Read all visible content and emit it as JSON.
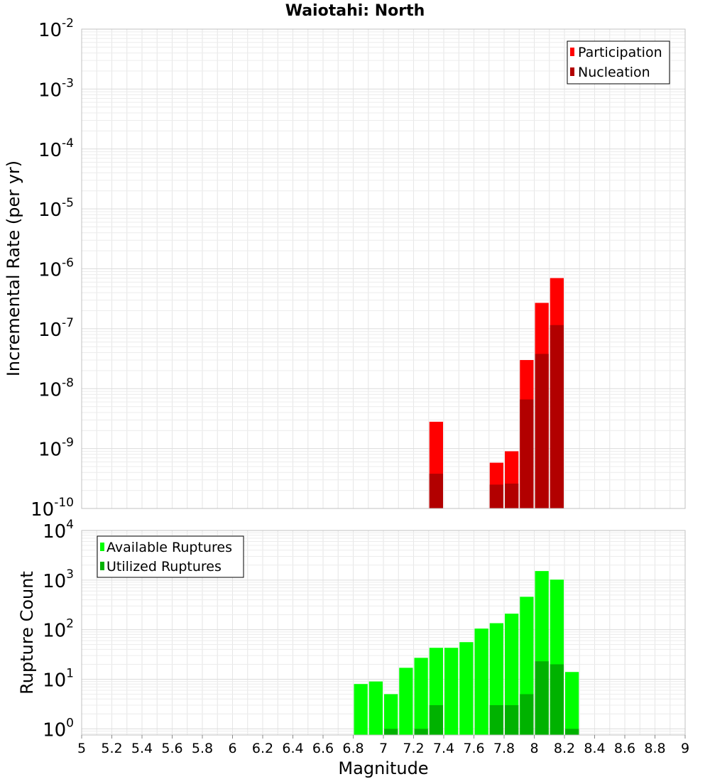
{
  "title": "Waiotahi: North",
  "colors": {
    "participation": "#ff0000",
    "nucleation": "#b20000",
    "available": "#00ff00",
    "utilized": "#00b200",
    "grid": "#e6e6e6",
    "plot_border": "#c0c0c0"
  },
  "chart_data": [
    {
      "type": "bar",
      "name": "rates",
      "title": "Waiotahi: North",
      "xlabel": "",
      "ylabel": "Incremental Rate (per yr)",
      "y_scale": "log",
      "xlim": [
        5,
        9
      ],
      "ylim": [
        1e-10,
        0.01
      ],
      "bar_width": 0.1,
      "y_ticks": [
        {
          "base": "10",
          "exp": "-2"
        },
        {
          "base": "10",
          "exp": "-3"
        },
        {
          "base": "10",
          "exp": "-4"
        },
        {
          "base": "10",
          "exp": "-5"
        },
        {
          "base": "10",
          "exp": "-6"
        },
        {
          "base": "10",
          "exp": "-7"
        },
        {
          "base": "10",
          "exp": "-8"
        },
        {
          "base": "10",
          "exp": "-9"
        },
        {
          "base": "10",
          "exp": "-10"
        }
      ],
      "legend": {
        "position": "top-right",
        "entries": [
          "Participation",
          "Nucleation"
        ]
      },
      "series": [
        {
          "name": "Participation",
          "x": [
            7.35,
            7.75,
            7.85,
            7.95,
            8.05,
            8.15
          ],
          "values": [
            2.8e-09,
            5.8e-10,
            9e-10,
            3e-08,
            2.7e-07,
            7e-07
          ]
        },
        {
          "name": "Nucleation",
          "x": [
            7.35,
            7.75,
            7.85,
            7.95,
            8.05,
            8.15
          ],
          "values": [
            3.8e-10,
            2.5e-10,
            2.6e-10,
            6.6e-09,
            3.8e-08,
            1.15e-07
          ]
        }
      ]
    },
    {
      "type": "bar",
      "name": "counts",
      "xlabel": "Magnitude",
      "ylabel": "Rupture Count",
      "y_scale": "log",
      "xlim": [
        5,
        9
      ],
      "ylim": [
        0.75,
        10000
      ],
      "bar_width": 0.1,
      "x_ticks": [
        "5",
        "5.2",
        "5.4",
        "5.6",
        "5.8",
        "6",
        "6.2",
        "6.4",
        "6.6",
        "6.8",
        "7",
        "7.2",
        "7.4",
        "7.6",
        "7.8",
        "8",
        "8.2",
        "8.4",
        "8.6",
        "8.8",
        "9"
      ],
      "y_ticks": [
        {
          "base": "10",
          "exp": "4"
        },
        {
          "base": "10",
          "exp": "3"
        },
        {
          "base": "10",
          "exp": "2"
        },
        {
          "base": "10",
          "exp": "1"
        },
        {
          "base": "10",
          "exp": "0"
        }
      ],
      "legend": {
        "position": "top-left",
        "entries": [
          "Available Ruptures",
          "Utilized Ruptures"
        ]
      },
      "series": [
        {
          "name": "Available Ruptures",
          "x": [
            6.85,
            6.95,
            7.05,
            7.15,
            7.25,
            7.35,
            7.45,
            7.55,
            7.65,
            7.75,
            7.85,
            7.95,
            8.05,
            8.15,
            8.25
          ],
          "values": [
            8,
            9,
            5,
            17,
            27,
            43,
            43,
            56,
            105,
            135,
            210,
            460,
            1520,
            1020,
            14
          ]
        },
        {
          "name": "Utilized Ruptures",
          "x": [
            7.05,
            7.25,
            7.35,
            7.75,
            7.85,
            7.95,
            8.05,
            8.15,
            8.25
          ],
          "values": [
            1,
            1,
            3,
            3,
            3,
            5,
            23,
            20,
            1
          ]
        }
      ]
    }
  ]
}
